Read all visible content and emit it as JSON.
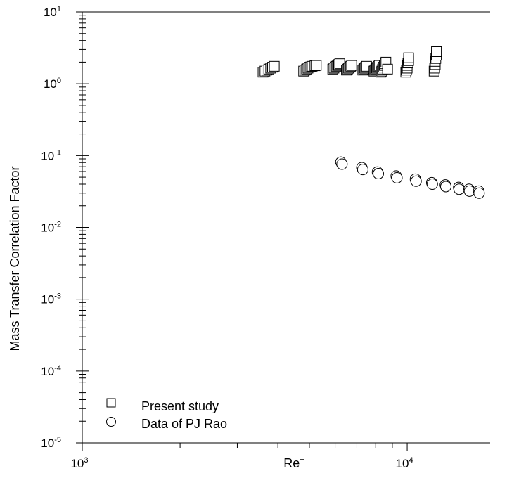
{
  "chart_data": {
    "type": "scatter",
    "xlabel": "Re",
    "xlabel_superscript": "+",
    "ylabel": "Mass Transfer Correlation Factor",
    "xscale": "log",
    "yscale": "log",
    "xlim": [
      1000,
      18000
    ],
    "ylim": [
      1e-05,
      10
    ],
    "x_tick_labels": [
      {
        "value": 1000,
        "base": "10",
        "exp": "3"
      },
      {
        "value": 10000,
        "base": "10",
        "exp": "4"
      }
    ],
    "y_tick_labels": [
      {
        "value": 10,
        "base": "10",
        "exp": "1"
      },
      {
        "value": 1,
        "base": "10",
        "exp": "0"
      },
      {
        "value": 0.1,
        "base": "10",
        "exp": "-1"
      },
      {
        "value": 0.01,
        "base": "10",
        "exp": "-2"
      },
      {
        "value": 0.001,
        "base": "10",
        "exp": "-3"
      },
      {
        "value": 0.0001,
        "base": "10",
        "exp": "-4"
      },
      {
        "value": 1e-05,
        "base": "10",
        "exp": "-5"
      }
    ],
    "grid": false,
    "legend_position": "bottom-left",
    "series": [
      {
        "name": "Present study",
        "marker": "square",
        "x": [
          3600,
          3650,
          3700,
          3750,
          3800,
          3850,
          3900,
          4800,
          4850,
          4900,
          4950,
          5000,
          5050,
          5100,
          5200,
          5250,
          5900,
          5950,
          6000,
          6050,
          6100,
          6150,
          6200,
          6500,
          6550,
          6600,
          6650,
          6700,
          6750,
          7300,
          7350,
          7400,
          7450,
          7500,
          7900,
          7950,
          8000,
          8050,
          8100,
          8150,
          8200,
          8300,
          8350,
          8400,
          8450,
          8500,
          8550,
          8600,
          8700,
          9900,
          9950,
          10000,
          10000,
          10050,
          10100,
          10100,
          12100,
          12150,
          12200,
          12200,
          12250,
          12300,
          12300
        ],
        "y": [
          1.45,
          1.5,
          1.55,
          1.6,
          1.65,
          1.7,
          1.75,
          1.5,
          1.55,
          1.6,
          1.65,
          1.7,
          1.72,
          1.75,
          1.78,
          1.8,
          1.6,
          1.65,
          1.7,
          1.75,
          1.8,
          1.85,
          1.9,
          1.55,
          1.6,
          1.65,
          1.7,
          1.75,
          1.8,
          1.55,
          1.6,
          1.65,
          1.7,
          1.75,
          1.5,
          1.55,
          1.6,
          1.65,
          1.7,
          1.75,
          1.8,
          1.45,
          1.5,
          1.6,
          1.7,
          1.8,
          1.9,
          2.0,
          1.6,
          1.45,
          1.55,
          1.65,
          1.8,
          1.95,
          2.1,
          2.3,
          1.5,
          1.65,
          1.85,
          2.05,
          2.25,
          2.5,
          2.8
        ]
      },
      {
        "name": "Data of PJ Rao",
        "marker": "circle",
        "x": [
          6250,
          6300,
          7250,
          7300,
          8100,
          8150,
          9250,
          9300,
          10600,
          10650,
          11900,
          11950,
          13100,
          13150,
          14400,
          14450,
          15500,
          15550,
          16600,
          16650
        ],
        "y": [
          0.081,
          0.076,
          0.068,
          0.064,
          0.059,
          0.056,
          0.052,
          0.049,
          0.047,
          0.044,
          0.042,
          0.04,
          0.039,
          0.037,
          0.036,
          0.034,
          0.034,
          0.032,
          0.032,
          0.03
        ]
      }
    ]
  }
}
